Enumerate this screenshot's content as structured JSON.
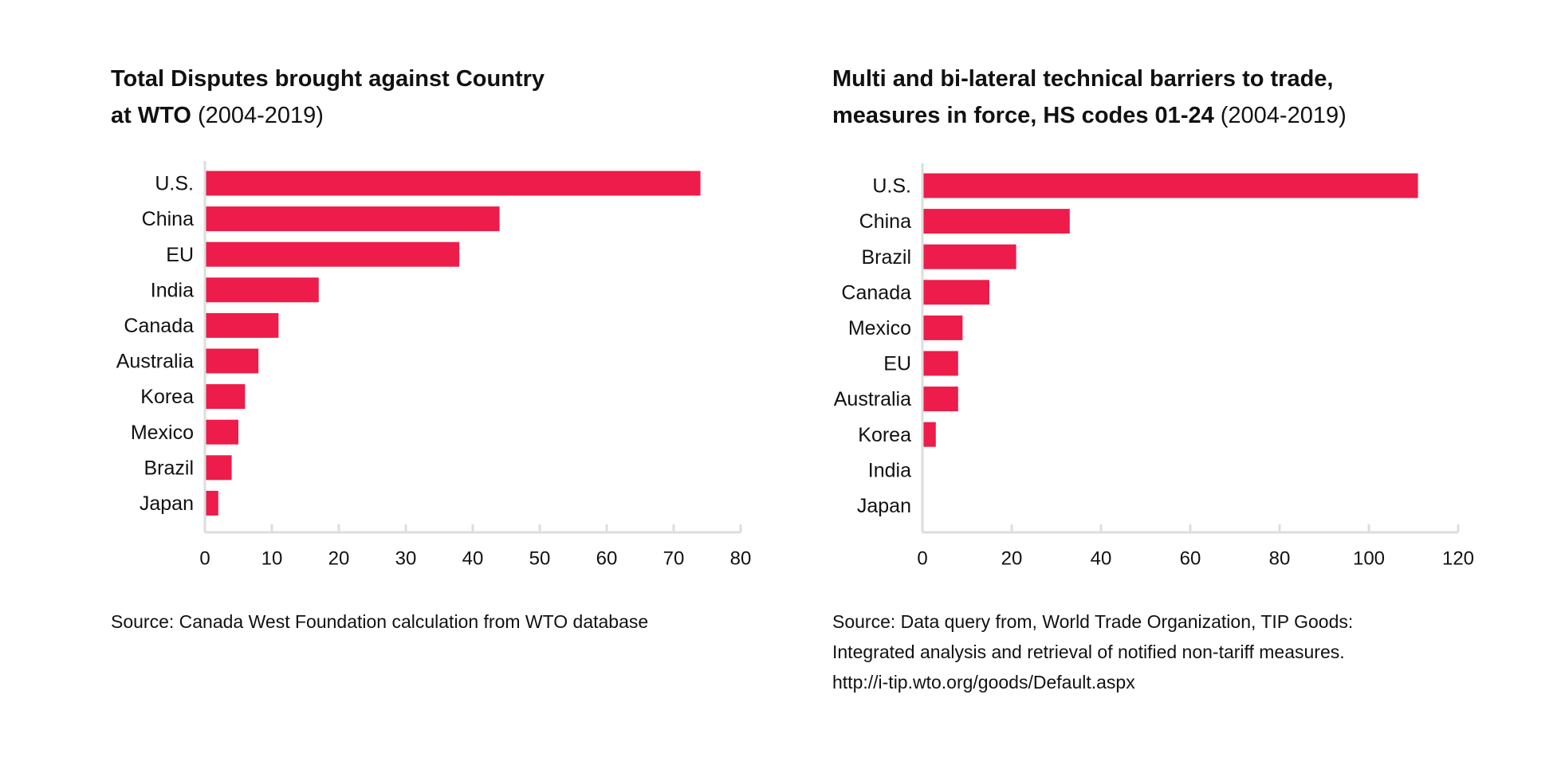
{
  "chart_data": [
    {
      "type": "bar",
      "orientation": "horizontal",
      "title": [
        "Total Disputes brought against Country",
        "at WTO"
      ],
      "subtitle": "(2004-2019)",
      "categories": [
        "U.S.",
        "China",
        "EU",
        "India",
        "Canada",
        "Australia",
        "Korea",
        "Mexico",
        "Brazil",
        "Japan"
      ],
      "values": [
        74,
        44,
        38,
        17,
        11,
        8,
        6,
        5,
        4,
        2
      ],
      "color": "#ed1c4a",
      "xlim": [
        0,
        80
      ],
      "xticks": [
        0,
        10,
        20,
        30,
        40,
        50,
        60,
        70,
        80
      ],
      "source": [
        "Source: Canada West Foundation calculation from WTO database"
      ]
    },
    {
      "type": "bar",
      "orientation": "horizontal",
      "title": [
        "Multi and bi-lateral technical barriers to trade,",
        "measures in force, HS codes 01-24"
      ],
      "subtitle": "(2004-2019)",
      "categories": [
        "U.S.",
        "China",
        "Brazil",
        "Canada",
        "Mexico",
        "EU",
        "Australia",
        "Korea",
        "India",
        "Japan"
      ],
      "values": [
        111,
        33,
        21,
        15,
        9,
        8,
        8,
        3,
        0,
        0
      ],
      "color": "#ed1c4a",
      "xlim": [
        0,
        120
      ],
      "xticks": [
        0,
        20,
        40,
        60,
        80,
        100,
        120
      ],
      "source": [
        "Source: Data query from, World Trade Organization, TIP Goods:",
        "Integrated analysis and retrieval of notified non-tariff measures.",
        "http://i-tip.wto.org/goods/Default.aspx"
      ]
    }
  ]
}
